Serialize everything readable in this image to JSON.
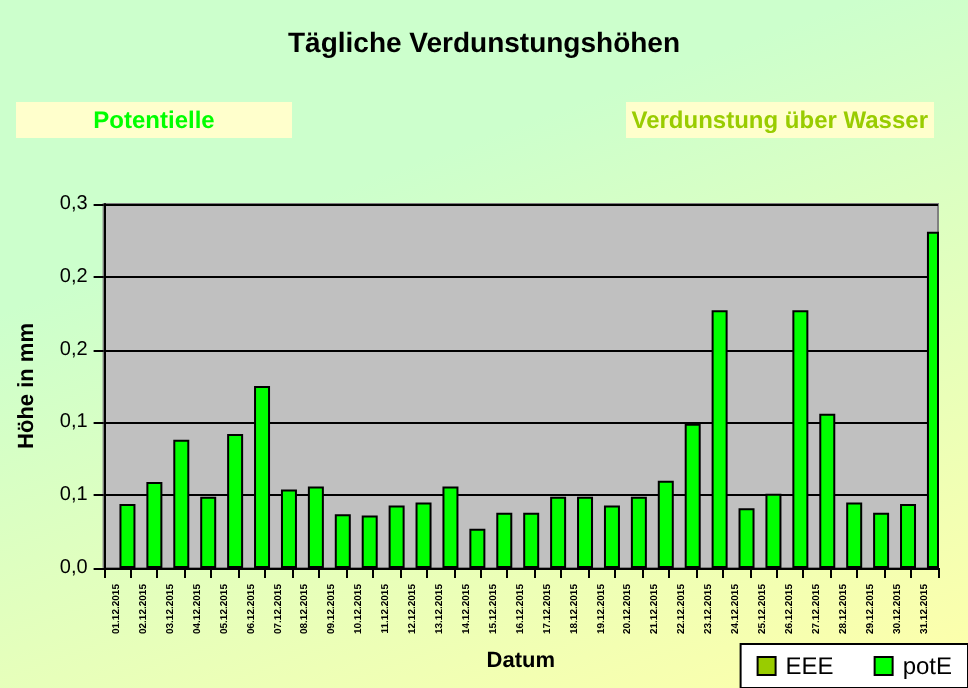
{
  "chart_data": {
    "type": "bar",
    "title": "Tägliche Verdunstungshöhen",
    "annotations": [
      "Potentielle",
      "Verdunstung über Wasser"
    ],
    "xlabel": "Datum",
    "ylabel": "Höhe in mm",
    "categories": [
      "01.12.2015",
      "02.12.2015",
      "03.12.2015",
      "04.12.2015",
      "05.12.2015",
      "06.12.2015",
      "07.12.2015",
      "08.12.2015",
      "09.12.2015",
      "10.12.2015",
      "11.12.2015",
      "12.12.2015",
      "13.12.2015",
      "14.12.2015",
      "15.12.2015",
      "16.12.2015",
      "17.12.2015",
      "18.12.2015",
      "19.12.2015",
      "20.12.2015",
      "21.12.2015",
      "22.12.2015",
      "23.12.2015",
      "24.12.2015",
      "25.12.2015",
      "26.12.2015",
      "27.12.2015",
      "28.12.2015",
      "29.12.2015",
      "30.12.2015",
      "31.12.2015"
    ],
    "series": [
      {
        "name": "EEE",
        "color": "#99cc00",
        "values": [
          null,
          null,
          null,
          null,
          null,
          null,
          null,
          null,
          null,
          null,
          null,
          null,
          null,
          null,
          null,
          null,
          null,
          null,
          null,
          null,
          null,
          null,
          null,
          null,
          null,
          null,
          null,
          null,
          null,
          null,
          null
        ]
      },
      {
        "name": "potE",
        "color": "#00ff00",
        "values": [
          0.044,
          0.059,
          0.088,
          0.049,
          0.092,
          0.125,
          0.054,
          0.056,
          0.037,
          0.036,
          0.043,
          0.045,
          0.056,
          0.027,
          0.038,
          0.038,
          0.049,
          0.049,
          0.043,
          0.049,
          0.06,
          0.099,
          0.177,
          0.041,
          0.051,
          0.177,
          0.106,
          0.045,
          0.038,
          0.044,
          0.231
        ]
      }
    ],
    "ylim": [
      0,
      0.25
    ],
    "yticks": [
      {
        "value": 0,
        "label": "0,0"
      },
      {
        "value": 0.05,
        "label": "0,1"
      },
      {
        "value": 0.1,
        "label": "0,1"
      },
      {
        "value": 0.15,
        "label": "0,2"
      },
      {
        "value": 0.2,
        "label": "0,2"
      },
      {
        "value": 0.25,
        "label": "0,3"
      }
    ],
    "grid": "y",
    "legend": "bottom right"
  }
}
